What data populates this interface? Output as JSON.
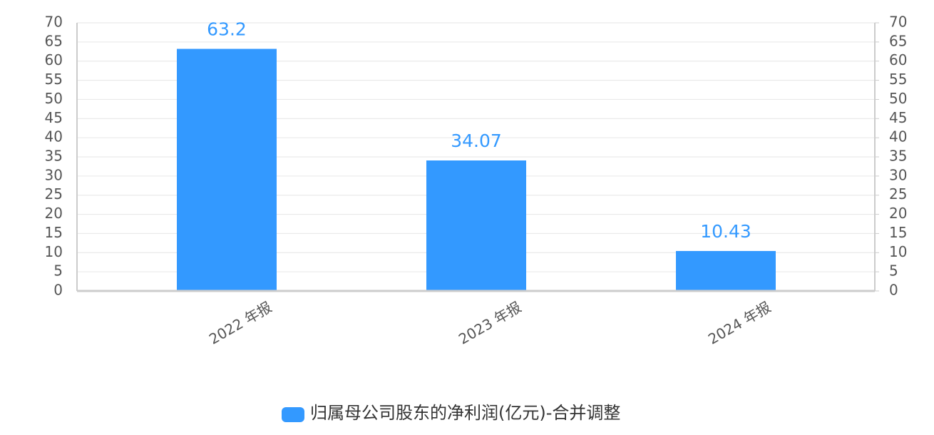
{
  "chart_data": {
    "type": "bar",
    "categories": [
      "2022 年报",
      "2023 年报",
      "2024 年报"
    ],
    "series": [
      {
        "name": "归属母公司股东的净利润(亿元)-合并调整",
        "color": "#3399ff",
        "values": [
          63.2,
          34.07,
          10.43
        ]
      }
    ],
    "ylim": [
      0,
      70
    ],
    "yticks": [
      0,
      5,
      10,
      15,
      20,
      25,
      30,
      35,
      40,
      45,
      50,
      55,
      60,
      65,
      70
    ],
    "y2lim": [
      0,
      70
    ],
    "y2ticks": [
      0,
      5,
      10,
      15,
      20,
      25,
      30,
      35,
      40,
      45,
      50,
      55,
      60,
      65,
      70
    ],
    "grid": true,
    "legend": "bottom"
  }
}
